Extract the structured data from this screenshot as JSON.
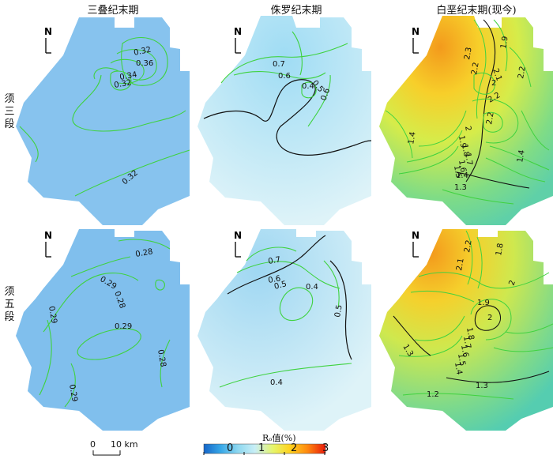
{
  "columns": [
    "三叠纪末期",
    "侏罗纪末期",
    "白垩纪末期(现今)"
  ],
  "rows": [
    {
      "label_chars": [
        "须",
        "三",
        "段"
      ]
    },
    {
      "label_chars": [
        "须",
        "五",
        "段"
      ]
    }
  ],
  "north_label": "N",
  "panels": [
    {
      "id": "p11",
      "period": "三叠纪末期",
      "member": "须三段",
      "fill": "#86c3ee",
      "contour_labels": [
        "0.32",
        "0.36",
        "0.34",
        "0.32",
        "0.32"
      ]
    },
    {
      "id": "p12",
      "period": "侏罗纪末期",
      "member": "须三段",
      "fill": "#c9eaf5",
      "contour_labels": [
        "0.7",
        "0.6",
        "0.5",
        "0.4",
        "0.6"
      ]
    },
    {
      "id": "p13",
      "period": "白垩纪末期(现今)",
      "member": "须三段",
      "fill": "#b3e06a",
      "contour_labels": [
        "1.9",
        "2.3",
        "2.2",
        "2.1",
        "2.2",
        "2",
        "2.2",
        "2.2",
        "2",
        "1.9",
        "1.8",
        "1.7",
        "1.6",
        "1.5",
        "1.4",
        "1.4",
        "1.4",
        "1.3"
      ]
    },
    {
      "id": "p21",
      "period": "三叠纪末期",
      "member": "须五段",
      "fill": "#7fbfed",
      "contour_labels": [
        "0.28",
        "0.29",
        "0.28",
        "0.29",
        "0.29",
        "0.28",
        "0.29"
      ]
    },
    {
      "id": "p22",
      "period": "侏罗纪末期",
      "member": "须五段",
      "fill": "#cdeaf6",
      "contour_labels": [
        "0.7",
        "0.6",
        "0.5",
        "0.4",
        "0.5",
        "0.4"
      ]
    },
    {
      "id": "p23",
      "period": "白垩纪末期(现今)",
      "member": "须五段",
      "fill": "#b8e26e",
      "contour_labels": [
        "2.2",
        "2.1",
        "1.8",
        "2",
        "1.9",
        "2",
        "1.8",
        "1.7",
        "1.6",
        "1.5",
        "1.4",
        "1.3",
        "1.3",
        "1.2"
      ]
    }
  ],
  "scale_bar": {
    "zero": "0",
    "label": "10 km"
  },
  "legend": {
    "title": "Rₒ值(%)",
    "ticks": [
      "0",
      "1",
      "2",
      "3"
    ],
    "colors": [
      "#1565c8",
      "#37a8e8",
      "#8ed8f0",
      "#c8eef6",
      "#e6f56a",
      "#ffd21e",
      "#ff8a10",
      "#e81a0a"
    ]
  }
}
